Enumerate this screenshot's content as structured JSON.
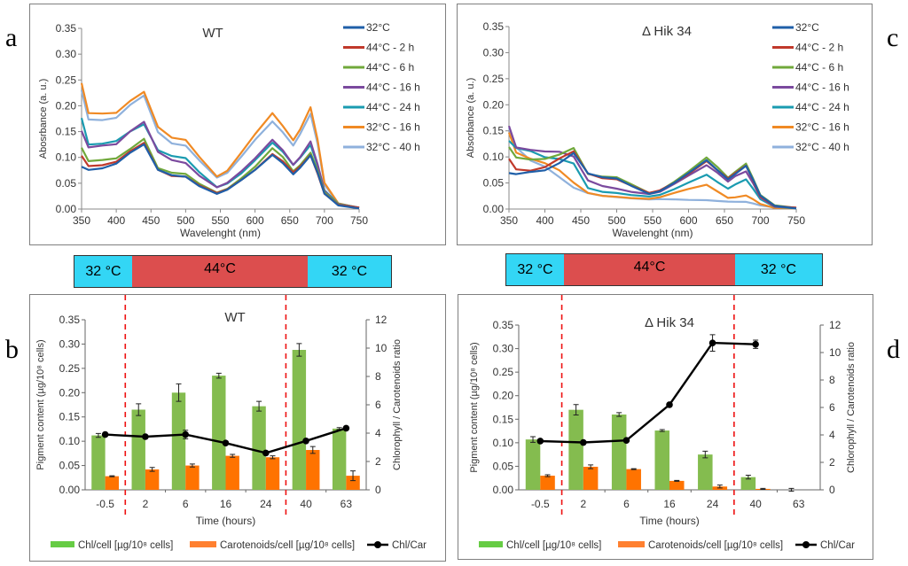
{
  "panel_letters": {
    "a": "a",
    "b": "b",
    "c": "c",
    "d": "d"
  },
  "colors": {
    "s32": "#1f5fa8",
    "s44_2": "#c0392b",
    "s44_6": "#70a83b",
    "s44_16": "#7b4a9e",
    "s44_24": "#1a9bb0",
    "s32_16": "#f08a24",
    "s32_40": "#8fb1dc",
    "chl_bar": "#84bc4f",
    "car_bar": "#ff7300",
    "ratio_line": "#000000",
    "legend_chl": "#66cc44",
    "legend_car": "#ff8030",
    "cold": "#33d6f5",
    "hot": "#dc4e4e",
    "divider": "#ee1111"
  },
  "temp_bars": [
    {
      "segments": [
        {
          "label": "32 °C",
          "kind": "cold"
        },
        {
          "label": "44°C",
          "kind": "hot"
        },
        {
          "label": "32 °C",
          "kind": "cold"
        }
      ]
    },
    {
      "segments": [
        {
          "label": "32 °C",
          "kind": "cold"
        },
        {
          "label": "44°C",
          "kind": "hot"
        },
        {
          "label": "32 °C",
          "kind": "cold"
        }
      ]
    }
  ],
  "chart_data": [
    {
      "id": "a",
      "type": "line",
      "title": "WT",
      "xlabel": "Wavelenght (nm)",
      "ylabel": "Abosrbance (a. u.)",
      "xlim": [
        350,
        750
      ],
      "ylim": [
        0,
        0.35
      ],
      "xticks": [
        "350",
        "400",
        "450",
        "500",
        "550",
        "600",
        "650",
        "700",
        "750"
      ],
      "yticks": [
        "0.00",
        "0.05",
        "0.10",
        "0.15",
        "0.20",
        "0.25",
        "0.30",
        "0.35"
      ],
      "legend_position": "right",
      "x": [
        350,
        360,
        380,
        400,
        420,
        440,
        460,
        480,
        500,
        520,
        545,
        560,
        580,
        600,
        625,
        640,
        655,
        665,
        680,
        690,
        700,
        720,
        750
      ],
      "series": [
        {
          "name": "32°C",
          "color_key": "s32",
          "values": [
            0.08,
            0.075,
            0.08,
            0.09,
            0.11,
            0.125,
            0.075,
            0.065,
            0.063,
            0.045,
            0.03,
            0.037,
            0.055,
            0.075,
            0.105,
            0.09,
            0.068,
            0.08,
            0.103,
            0.07,
            0.03,
            0.008,
            0.002
          ]
        },
        {
          "name": "44°C - 2 h",
          "color_key": "s44_2",
          "values": [
            0.105,
            0.085,
            0.085,
            0.09,
            0.11,
            0.128,
            0.077,
            0.065,
            0.063,
            0.045,
            0.03,
            0.038,
            0.057,
            0.077,
            0.107,
            0.092,
            0.07,
            0.082,
            0.105,
            0.07,
            0.03,
            0.008,
            0.002
          ]
        },
        {
          "name": "44°C - 6 h",
          "color_key": "s44_6",
          "values": [
            0.12,
            0.092,
            0.093,
            0.097,
            0.117,
            0.137,
            0.08,
            0.07,
            0.067,
            0.048,
            0.032,
            0.04,
            0.06,
            0.082,
            0.117,
            0.1,
            0.073,
            0.086,
            0.11,
            0.075,
            0.032,
            0.008,
            0.002
          ]
        },
        {
          "name": "44°C - 16 h",
          "color_key": "s44_16",
          "values": [
            0.15,
            0.12,
            0.125,
            0.127,
            0.15,
            0.168,
            0.11,
            0.095,
            0.09,
            0.065,
            0.042,
            0.05,
            0.072,
            0.098,
            0.135,
            0.115,
            0.086,
            0.1,
            0.13,
            0.087,
            0.036,
            0.009,
            0.002
          ]
        },
        {
          "name": "44°C - 24 h",
          "color_key": "s44_24",
          "values": [
            0.178,
            0.125,
            0.125,
            0.13,
            0.15,
            0.165,
            0.115,
            0.103,
            0.098,
            0.07,
            0.042,
            0.05,
            0.07,
            0.095,
            0.128,
            0.11,
            0.085,
            0.1,
            0.125,
            0.085,
            0.036,
            0.009,
            0.002
          ]
        },
        {
          "name": "32°C - 16 h",
          "color_key": "s32_16",
          "values": [
            0.245,
            0.185,
            0.183,
            0.185,
            0.21,
            0.228,
            0.16,
            0.138,
            0.133,
            0.1,
            0.063,
            0.075,
            0.11,
            0.145,
            0.185,
            0.16,
            0.133,
            0.155,
            0.198,
            0.135,
            0.05,
            0.01,
            0.002
          ]
        },
        {
          "name": "32°C - 40 h",
          "color_key": "s32_40",
          "values": [
            0.232,
            0.175,
            0.172,
            0.175,
            0.2,
            0.22,
            0.15,
            0.128,
            0.123,
            0.093,
            0.06,
            0.07,
            0.102,
            0.135,
            0.17,
            0.148,
            0.122,
            0.145,
            0.185,
            0.128,
            0.048,
            0.01,
            0.002
          ]
        }
      ]
    },
    {
      "id": "c",
      "type": "line",
      "title": "Δ Hik 34",
      "xlabel": "Wavelenght (nm)",
      "ylabel": "Absorbance (a. u.)",
      "xlim": [
        350,
        750
      ],
      "ylim": [
        0,
        0.35
      ],
      "xticks": [
        "350",
        "400",
        "450",
        "500",
        "550",
        "600",
        "650",
        "700",
        "750"
      ],
      "yticks": [
        "0.00",
        "0.05",
        "0.10",
        "0.15",
        "0.20",
        "0.25",
        "0.30",
        "0.35"
      ],
      "legend_position": "right",
      "x": [
        350,
        360,
        380,
        400,
        420,
        440,
        460,
        480,
        500,
        520,
        545,
        560,
        580,
        600,
        625,
        640,
        655,
        665,
        680,
        690,
        700,
        720,
        750
      ],
      "series": [
        {
          "name": "32°C",
          "color_key": "s32",
          "values": [
            0.068,
            0.065,
            0.07,
            0.075,
            0.09,
            0.108,
            0.068,
            0.06,
            0.058,
            0.045,
            0.03,
            0.035,
            0.05,
            0.068,
            0.093,
            0.075,
            0.058,
            0.068,
            0.083,
            0.055,
            0.025,
            0.006,
            0.002
          ]
        },
        {
          "name": "44°C - 2 h",
          "color_key": "s44_2",
          "values": [
            0.097,
            0.078,
            0.075,
            0.08,
            0.095,
            0.11,
            0.068,
            0.06,
            0.058,
            0.045,
            0.03,
            0.035,
            0.05,
            0.068,
            0.093,
            0.075,
            0.058,
            0.068,
            0.083,
            0.055,
            0.025,
            0.006,
            0.002
          ]
        },
        {
          "name": "44°C - 6 h",
          "color_key": "s44_6",
          "values": [
            0.12,
            0.098,
            0.093,
            0.095,
            0.105,
            0.118,
            0.068,
            0.062,
            0.06,
            0.047,
            0.031,
            0.036,
            0.053,
            0.072,
            0.098,
            0.08,
            0.06,
            0.072,
            0.088,
            0.058,
            0.026,
            0.006,
            0.002
          ]
        },
        {
          "name": "44°C - 16 h",
          "color_key": "s44_16",
          "values": [
            0.16,
            0.12,
            0.115,
            0.11,
            0.108,
            0.1,
            0.055,
            0.045,
            0.04,
            0.033,
            0.028,
            0.032,
            0.048,
            0.065,
            0.085,
            0.07,
            0.052,
            0.062,
            0.072,
            0.05,
            0.023,
            0.005,
            0.002
          ]
        },
        {
          "name": "44°C - 24 h",
          "color_key": "s44_24",
          "values": [
            0.13,
            0.115,
            0.11,
            0.1,
            0.098,
            0.088,
            0.04,
            0.032,
            0.03,
            0.027,
            0.025,
            0.028,
            0.038,
            0.05,
            0.065,
            0.052,
            0.04,
            0.048,
            0.057,
            0.038,
            0.018,
            0.004,
            0.002
          ]
        },
        {
          "name": "32°C - 16 h",
          "color_key": "s32_16",
          "values": [
            0.145,
            0.108,
            0.098,
            0.09,
            0.075,
            0.05,
            0.03,
            0.025,
            0.024,
            0.022,
            0.02,
            0.022,
            0.03,
            0.038,
            0.047,
            0.035,
            0.022,
            0.022,
            0.025,
            0.018,
            0.01,
            0.003,
            0.002
          ]
        },
        {
          "name": "32°C - 40 h",
          "color_key": "s32_40",
          "values": [
            0.155,
            0.12,
            0.095,
            0.082,
            0.06,
            0.04,
            0.03,
            0.026,
            0.024,
            0.021,
            0.018,
            0.018,
            0.018,
            0.018,
            0.018,
            0.016,
            0.014,
            0.013,
            0.013,
            0.011,
            0.008,
            0.004,
            0.002
          ]
        }
      ]
    },
    {
      "id": "b",
      "type": "bar",
      "title": "WT",
      "xlabel": "Time (hours)",
      "ylabel": "Pigment content (µg/10⁸ cells)",
      "y2label": "Chlorophyll / Carotenoids ratio",
      "categories": [
        "-0.5",
        "2",
        "6",
        "16",
        "24",
        "40",
        "63"
      ],
      "ylim": [
        0,
        0.35
      ],
      "y2lim": [
        0,
        12
      ],
      "yticks": [
        "0.00",
        "0.05",
        "0.10",
        "0.15",
        "0.20",
        "0.25",
        "0.30",
        "0.35"
      ],
      "y2ticks": [
        "0",
        "2",
        "4",
        "6",
        "8",
        "10",
        "12"
      ],
      "dividers_after": [
        0,
        4
      ],
      "legend_position": "bottom",
      "series": [
        {
          "name": "Chl/cell [µg/10⁸ cells]",
          "kind": "bar",
          "axis": "left",
          "color_key": "chl_bar",
          "values": [
            0.112,
            0.165,
            0.2,
            0.235,
            0.172,
            0.288,
            0.126
          ],
          "errors": [
            0.004,
            0.012,
            0.018,
            0.005,
            0.01,
            0.013,
            0.002
          ]
        },
        {
          "name": "Carotenoids/cell [µg/10⁸ cells]",
          "kind": "bar",
          "axis": "left",
          "color_key": "car_bar",
          "values": [
            0.028,
            0.042,
            0.05,
            0.07,
            0.067,
            0.082,
            0.029
          ],
          "errors": [
            0.001,
            0.004,
            0.003,
            0.003,
            0.003,
            0.007,
            0.01
          ]
        },
        {
          "name": "Chl/Car",
          "kind": "line",
          "axis": "right",
          "color_key": "ratio_line",
          "values": [
            3.9,
            3.75,
            3.9,
            3.3,
            2.6,
            3.45,
            4.35
          ],
          "errors": [
            0.1,
            0.05,
            0.3,
            0.1,
            0.05,
            0.1,
            0.05
          ]
        }
      ]
    },
    {
      "id": "d",
      "type": "bar",
      "title": "Δ Hik 34",
      "xlabel": "Time (hours)",
      "ylabel": "Pigment content (µg/10⁸ cells)",
      "y2label": "Chlorophyll / Carotenoids ratio",
      "categories": [
        "-0.5",
        "2",
        "6",
        "16",
        "24",
        "40",
        "63"
      ],
      "ylim": [
        0,
        0.35
      ],
      "y2lim": [
        0,
        12
      ],
      "yticks": [
        "0.00",
        "0.05",
        "0.10",
        "0.15",
        "0.20",
        "0.25",
        "0.30",
        "0.35"
      ],
      "y2ticks": [
        "0",
        "2",
        "4",
        "6",
        "8",
        "10",
        "12"
      ],
      "dividers_after": [
        0,
        4
      ],
      "legend_position": "bottom",
      "series": [
        {
          "name": "Chl/cell [µg/10⁸ cells]",
          "kind": "bar",
          "axis": "left",
          "color_key": "chl_bar",
          "values": [
            0.107,
            0.17,
            0.16,
            0.126,
            0.075,
            0.027,
            0.0
          ],
          "errors": [
            0.006,
            0.011,
            0.004,
            0.002,
            0.007,
            0.004,
            0.003
          ]
        },
        {
          "name": "Carotenoids/cell [µg/10⁸ cells]",
          "kind": "bar",
          "axis": "left",
          "color_key": "car_bar",
          "values": [
            0.03,
            0.049,
            0.044,
            0.019,
            0.007,
            0.002,
            0.0
          ],
          "errors": [
            0.002,
            0.004,
            0.001,
            0.001,
            0.003,
            0.001,
            0.0
          ]
        },
        {
          "name": "Chl/Car",
          "kind": "line",
          "axis": "right",
          "color_key": "ratio_line",
          "values": [
            3.55,
            3.45,
            3.6,
            6.2,
            10.7,
            10.6,
            null
          ],
          "errors": [
            0.05,
            0.05,
            0.05,
            0.05,
            0.6,
            0.3,
            null
          ]
        }
      ]
    }
  ]
}
